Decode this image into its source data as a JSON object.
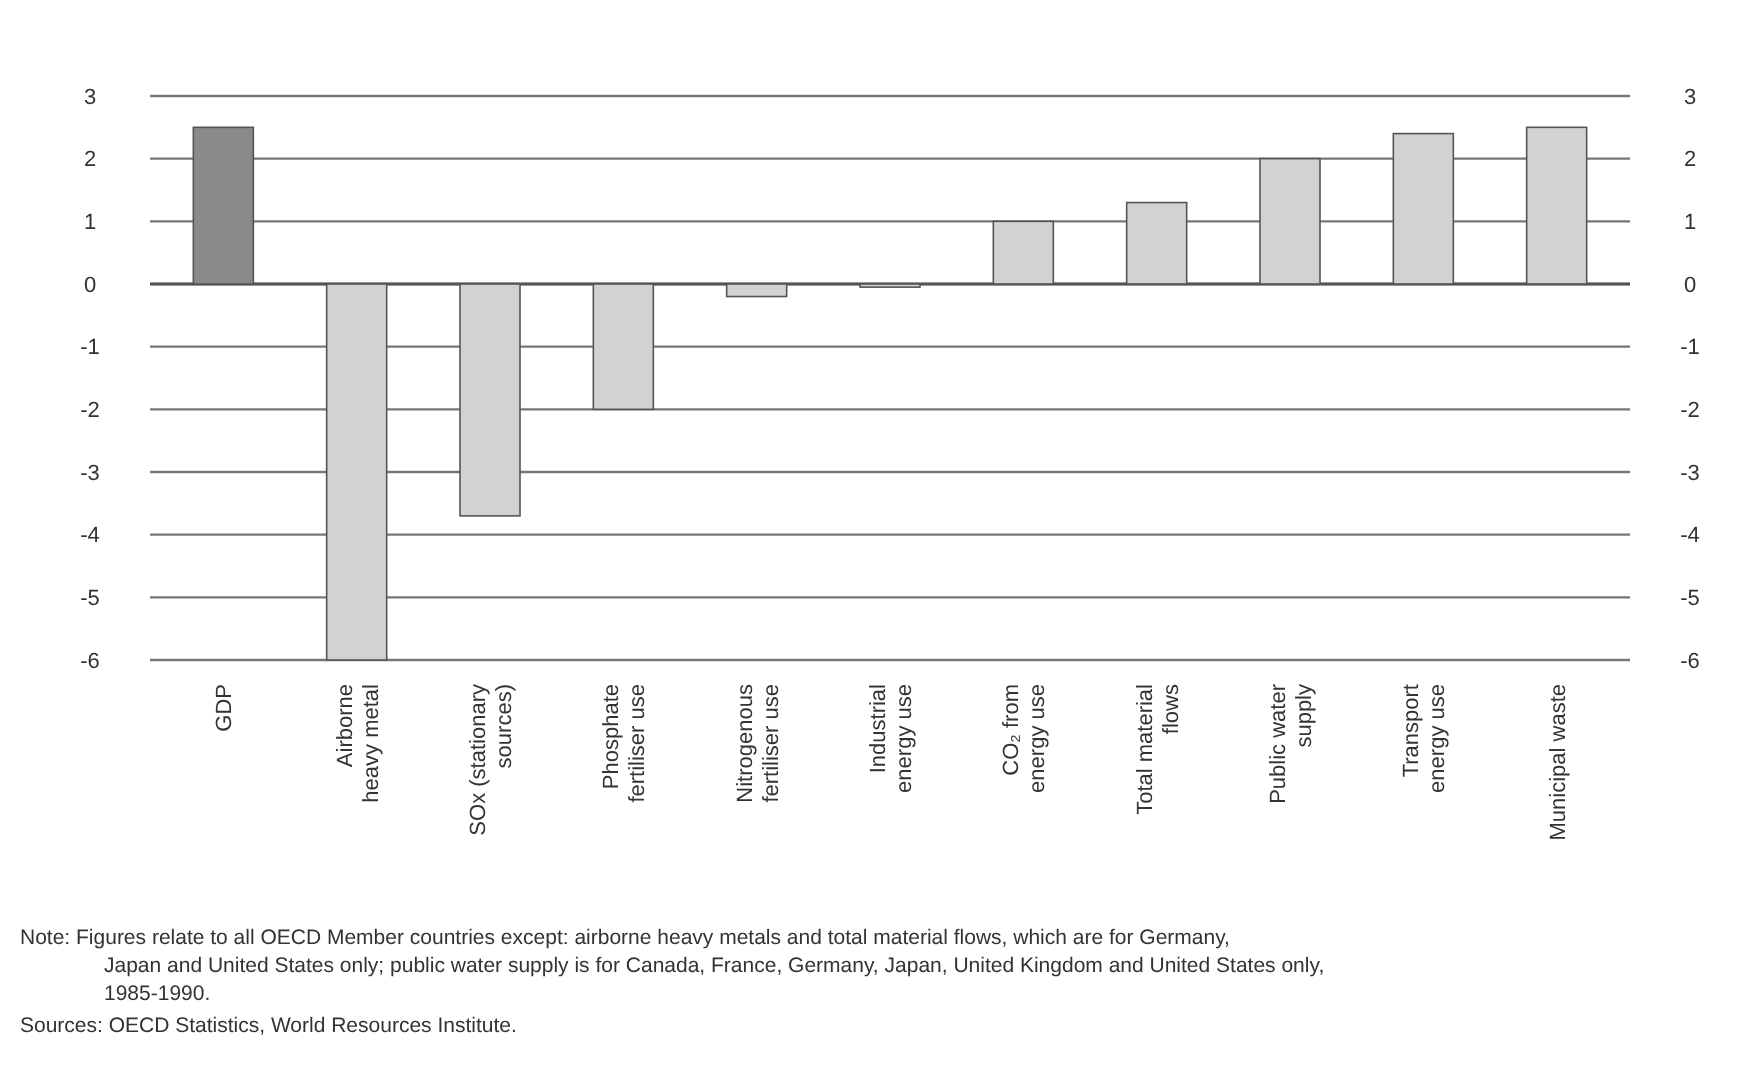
{
  "chart_data": {
    "type": "bar",
    "categories": [
      "GDP",
      "Airborne\nheavy metal",
      "SOx (stationary\nsources)",
      "Phosphate\nfertiliser use",
      "Nitrogenous\nfertiliser use",
      "Industrial\nenergy use",
      "CO₂ from\nenergy use",
      "Total material\nflows",
      "Public water\nsupply",
      "Transport\nenergy use",
      "Municipal waste"
    ],
    "values": [
      2.5,
      -6,
      -3.7,
      -2,
      -0.2,
      -0.05,
      1,
      1.3,
      2,
      2.4,
      2.5
    ],
    "colors": [
      "#8a8a8a",
      "#d2d2d2",
      "#d2d2d2",
      "#d2d2d2",
      "#d2d2d2",
      "#d2d2d2",
      "#d2d2d2",
      "#d2d2d2",
      "#d2d2d2",
      "#d2d2d2",
      "#d2d2d2"
    ],
    "ylim": [
      -6,
      3
    ],
    "yticks": [
      -6,
      -5,
      -4,
      -3,
      -2,
      -1,
      0,
      1,
      2,
      3
    ],
    "y2lim": [
      -6,
      3
    ],
    "y2ticks": [
      -6,
      -5,
      -4,
      -3,
      -2,
      -1,
      0,
      1,
      2,
      3
    ],
    "grid": "y",
    "annotations": [
      "Note:  Figures relate to all OECD Member countries except: airborne heavy metals and total material flows, which are for Germany, Japan and United States only; public water supply is for Canada, France, Germany, Japan, United Kingdom and United States only, 1985-1990.",
      "Sources:  OECD Statistics, World Resources Institute."
    ]
  }
}
